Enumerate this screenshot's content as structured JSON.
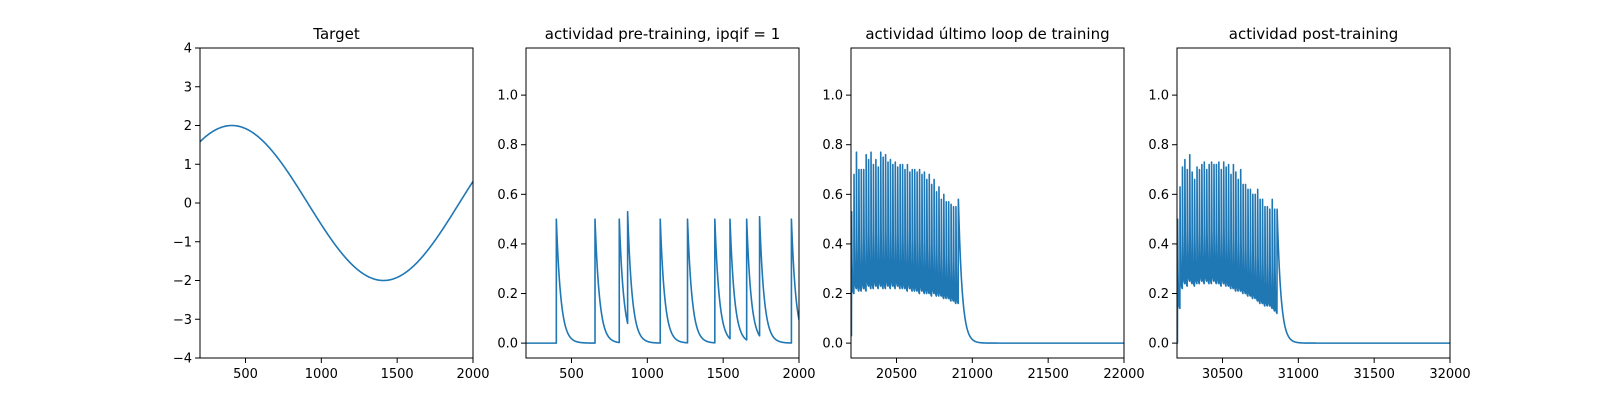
{
  "chart_data": [
    {
      "type": "line",
      "title": "Target",
      "xlim": [
        200,
        2000
      ],
      "ylim": [
        -4,
        4
      ],
      "xticks": [
        500,
        1000,
        1500,
        2000
      ],
      "xtick_labels": [
        "500",
        "1000",
        "1500",
        "2000"
      ],
      "yticks": [
        -4,
        -3,
        -2,
        -1,
        0,
        1,
        2,
        3,
        4
      ],
      "ytick_labels": [
        "−4",
        "−3",
        "−2",
        "−1",
        "0",
        "1",
        "2",
        "3",
        "4"
      ],
      "series": [
        {
          "name": "target",
          "kind": "sine",
          "amplitude": 2,
          "period": 2000,
          "peak_x": 410,
          "x_range": [
            200,
            2000
          ]
        }
      ]
    },
    {
      "type": "line",
      "title": "actividad pre-training, ipqif = 1",
      "xlim": [
        200,
        2000
      ],
      "ylim": [
        -0.06,
        1.19
      ],
      "xticks": [
        500,
        1000,
        1500,
        2000
      ],
      "xtick_labels": [
        "500",
        "1000",
        "1500",
        "2000"
      ],
      "yticks": [
        0,
        0.2,
        0.4,
        0.6,
        0.8,
        1.0
      ],
      "ytick_labels": [
        "0.0",
        "0.2",
        "0.4",
        "0.6",
        "0.8",
        "1.0"
      ],
      "series": [
        {
          "name": "actividad",
          "kind": "spikes",
          "baseline": 0,
          "decay": 30,
          "x_range": [
            200,
            2000
          ],
          "spikes": [
            {
              "x": 400,
              "h": 0.5
            },
            {
              "x": 655,
              "h": 0.5
            },
            {
              "x": 815,
              "h": 0.5
            },
            {
              "x": 870,
              "h": 0.53
            },
            {
              "x": 1085,
              "h": 0.5
            },
            {
              "x": 1265,
              "h": 0.5
            },
            {
              "x": 1445,
              "h": 0.5
            },
            {
              "x": 1545,
              "h": 0.5
            },
            {
              "x": 1655,
              "h": 0.5
            },
            {
              "x": 1740,
              "h": 0.51
            },
            {
              "x": 1950,
              "h": 0.5
            }
          ]
        }
      ]
    },
    {
      "type": "line",
      "title": "actividad último loop de training",
      "xlim": [
        20200,
        22000
      ],
      "ylim": [
        -0.06,
        1.19
      ],
      "xticks": [
        20500,
        21000,
        21500,
        22000
      ],
      "xtick_labels": [
        "20500",
        "21000",
        "21500",
        "22000"
      ],
      "yticks": [
        0,
        0.2,
        0.4,
        0.6,
        0.8,
        1.0
      ],
      "ytick_labels": [
        "0.0",
        "0.2",
        "0.4",
        "0.6",
        "0.8",
        "1.0"
      ],
      "series": [
        {
          "name": "actividad",
          "kind": "burst",
          "x_range": [
            20200,
            22000
          ],
          "start": 20200,
          "spike_period": 16,
          "end": 20930,
          "first_value": 0.05,
          "first_dip": 0.03,
          "peaks": [
            0.53,
            0.68,
            0.77,
            0.7,
            0.7,
            0.7,
            0.76,
            0.74,
            0.77,
            0.72,
            0.74,
            0.71,
            0.77,
            0.75,
            0.76,
            0.73,
            0.74,
            0.72,
            0.73,
            0.71,
            0.72,
            0.72,
            0.7,
            0.72,
            0.69,
            0.7,
            0.7,
            0.69,
            0.7,
            0.68,
            0.69,
            0.66,
            0.68,
            0.64,
            0.66,
            0.61,
            0.63,
            0.58,
            0.6,
            0.57,
            0.57,
            0.56,
            0.55,
            0.55,
            0.58
          ],
          "troughs": [
            0.2,
            0.22,
            0.21,
            0.21,
            0.22,
            0.21,
            0.23,
            0.22,
            0.22,
            0.23,
            0.22,
            0.23,
            0.22,
            0.22,
            0.23,
            0.22,
            0.23,
            0.22,
            0.23,
            0.22,
            0.22,
            0.22,
            0.21,
            0.22,
            0.21,
            0.21,
            0.21,
            0.2,
            0.21,
            0.2,
            0.2,
            0.2,
            0.19,
            0.2,
            0.19,
            0.19,
            0.19,
            0.18,
            0.18,
            0.18,
            0.17,
            0.17,
            0.16,
            0.16
          ],
          "final_decay": 25
        }
      ]
    },
    {
      "type": "line",
      "title": "actividad post-training",
      "xlim": [
        30200,
        32000
      ],
      "ylim": [
        -0.06,
        1.19
      ],
      "xticks": [
        30500,
        31000,
        31500,
        32000
      ],
      "xtick_labels": [
        "30500",
        "31000",
        "31500",
        "32000"
      ],
      "yticks": [
        0,
        0.2,
        0.4,
        0.6,
        0.8,
        1.0
      ],
      "ytick_labels": [
        "0.0",
        "0.2",
        "0.4",
        "0.6",
        "0.8",
        "1.0"
      ],
      "series": [
        {
          "name": "actividad",
          "kind": "burst",
          "x_range": [
            30200,
            32000
          ],
          "start": 30200,
          "spike_period": 16,
          "end": 30880,
          "first_value": 0.0,
          "first_dip": 0.0,
          "peaks": [
            0.5,
            0.63,
            0.71,
            0.74,
            0.7,
            0.76,
            0.69,
            0.66,
            0.71,
            0.7,
            0.72,
            0.73,
            0.7,
            0.72,
            0.73,
            0.72,
            0.72,
            0.73,
            0.7,
            0.73,
            0.71,
            0.72,
            0.68,
            0.72,
            0.69,
            0.66,
            0.7,
            0.64,
            0.64,
            0.62,
            0.62,
            0.6,
            0.6,
            0.62,
            0.58,
            0.58,
            0.55,
            0.55,
            0.54,
            0.58,
            0.54,
            0.54
          ],
          "troughs": [
            0.14,
            0.22,
            0.24,
            0.23,
            0.25,
            0.24,
            0.23,
            0.24,
            0.24,
            0.25,
            0.24,
            0.25,
            0.24,
            0.24,
            0.25,
            0.24,
            0.24,
            0.23,
            0.24,
            0.23,
            0.23,
            0.22,
            0.22,
            0.21,
            0.21,
            0.21,
            0.2,
            0.2,
            0.19,
            0.19,
            0.18,
            0.18,
            0.17,
            0.16,
            0.16,
            0.15,
            0.15,
            0.15,
            0.14,
            0.13,
            0.12
          ],
          "final_decay": 25
        }
      ]
    }
  ]
}
